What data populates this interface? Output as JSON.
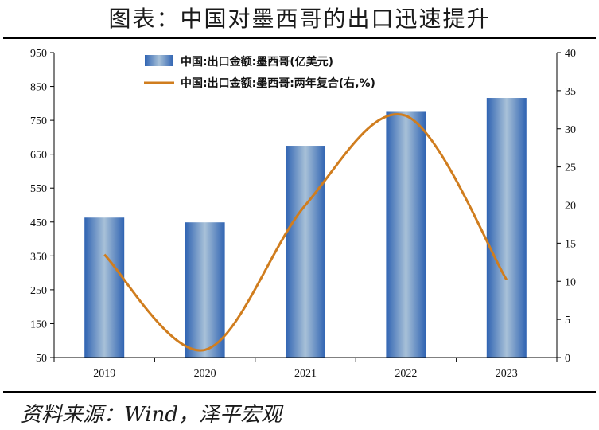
{
  "page": {
    "title": "图表：中国对墨西哥的出口迅速提升",
    "source": "资料来源：Wind，泽平宏观"
  },
  "chart_data": {
    "type": "bar",
    "categories": [
      "2019",
      "2020",
      "2021",
      "2022",
      "2023"
    ],
    "series": [
      {
        "name": "中国:出口金额:墨西哥(亿美元)",
        "type": "bar",
        "axis": "left",
        "values": [
          463,
          449,
          675,
          775,
          816
        ],
        "color": "#4a7fc4"
      },
      {
        "name": "中国:出口金额:墨西哥:两年复合(右,%)",
        "type": "line",
        "axis": "right",
        "values": [
          13.5,
          1,
          20,
          31.7,
          10.2
        ],
        "color": "#d07d1e"
      }
    ],
    "ylim_left": [
      50,
      950
    ],
    "yticks_left": [
      50,
      150,
      250,
      350,
      450,
      550,
      650,
      750,
      850,
      950
    ],
    "ylim_right": [
      0,
      40
    ],
    "yticks_right": [
      0,
      5,
      10,
      15,
      20,
      25,
      30,
      35,
      40
    ],
    "grid": false,
    "legend_position": "top-left"
  }
}
